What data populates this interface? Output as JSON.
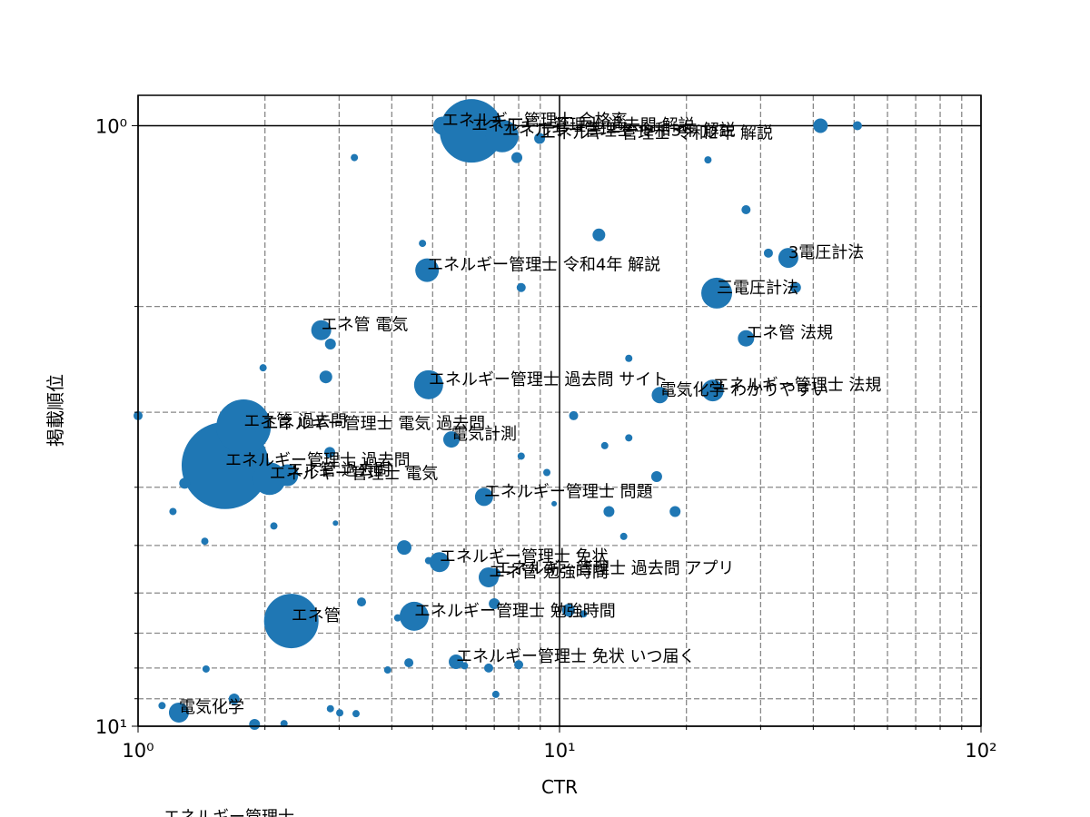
{
  "chart_data": {
    "type": "bubble",
    "x_label": "CTR",
    "y_label": "掲載順位",
    "x_log": true,
    "y_log": true,
    "y_inverted": true,
    "xlim": [
      1,
      100
    ],
    "ylim": [
      0.89,
      10
    ],
    "xticks": [
      {
        "value": 1,
        "label": "10⁰"
      },
      {
        "value": 10,
        "label": "10¹"
      },
      {
        "value": 100,
        "label": "10²"
      }
    ],
    "yticks": [
      {
        "value": 1,
        "label": "10⁰"
      },
      {
        "value": 10,
        "label": "10¹"
      }
    ],
    "xminorticks": [
      2,
      3,
      4,
      5,
      6,
      7,
      8,
      9,
      20,
      30,
      40,
      50,
      60,
      70,
      80,
      90
    ],
    "yminorticks": [
      2,
      3,
      4,
      5,
      6,
      7,
      8,
      9
    ],
    "grid": true,
    "color": "#1f77b4",
    "x": [
      1.61,
      1.78,
      1.97,
      2.05,
      2.26,
      6.18,
      7.31,
      5.27,
      8.97,
      41.6,
      50.9,
      7.92,
      3.26,
      22.5,
      27.7,
      12.4,
      4.73,
      31.3,
      34.9,
      4.85,
      8.11,
      23.6,
      36.3,
      2.72,
      2.86,
      27.7,
      14.6,
      1.98,
      2.79,
      4.89,
      17.3,
      23.1,
      1.0,
      10.8,
      5.54,
      12.8,
      14.6,
      2.85,
      8.11,
      9.33,
      17.0,
      1.29,
      6.62,
      9.71,
      1.21,
      13.1,
      18.8,
      2.1,
      2.94,
      1.44,
      14.2,
      4.28,
      5.19,
      4.89,
      6.79,
      7.03,
      7.0,
      3.39,
      2.31,
      4.52,
      4.13,
      10.5,
      11.4,
      5.68,
      5.95,
      4.39,
      3.91,
      6.79,
      8.0,
      1.45,
      7.06,
      1.69,
      1.25,
      1.14,
      2.86,
      3.01,
      3.29,
      1.89,
      2.22
    ],
    "values": [
      3.68,
      3.17,
      3.2,
      3.87,
      3.82,
      1.02,
      1.04,
      1.0,
      1.05,
      1.0,
      1.0,
      1.13,
      1.13,
      1.14,
      1.38,
      1.52,
      1.57,
      1.63,
      1.66,
      1.74,
      1.86,
      1.9,
      1.86,
      2.19,
      2.31,
      2.26,
      2.44,
      2.53,
      2.62,
      2.7,
      2.81,
      2.76,
      3.04,
      3.04,
      3.33,
      3.41,
      3.31,
      3.5,
      3.55,
      3.78,
      3.84,
      3.94,
      4.15,
      4.26,
      4.39,
      4.39,
      4.39,
      4.64,
      4.59,
      4.92,
      4.83,
      5.04,
      5.33,
      5.3,
      5.65,
      5.57,
      6.25,
      6.21,
      6.68,
      6.56,
      6.6,
      6.41,
      6.5,
      7.81,
      7.93,
      7.84,
      8.06,
      8.0,
      7.9,
      8.03,
      8.85,
      9.01,
      9.49,
      9.24,
      9.35,
      9.5,
      9.53,
      9.93,
      9.9
    ],
    "sizes": [
      2304,
      900,
      64,
      324,
      144,
      1225,
      324,
      100,
      36,
      64,
      25,
      36,
      16,
      16,
      25,
      49,
      16,
      25,
      121,
      169,
      25,
      289,
      36,
      121,
      36,
      81,
      16,
      16,
      49,
      256,
      81,
      144,
      25,
      25,
      81,
      16,
      16,
      36,
      16,
      16,
      36,
      36,
      100,
      9,
      16,
      36,
      36,
      16,
      9,
      16,
      16,
      64,
      121,
      16,
      121,
      36,
      36,
      25,
      900,
      256,
      16,
      49,
      16,
      64,
      16,
      25,
      16,
      25,
      25,
      16,
      16,
      36,
      121,
      16,
      16,
      16,
      16,
      36,
      16
    ],
    "labels": [
      "エネルギー管理士 過去問",
      "エネ管 過去問",
      "エネルギー管理士 電気 過去問",
      "エネルギー管理士 電気",
      "エネ管 過去問",
      "エネルギー管理士 過去問 解説",
      "エネルギー管理士 令和3年 解説",
      "エネルギー管理士 合格率",
      "エネルギー管理士 令和2年 解説",
      null,
      null,
      null,
      null,
      null,
      null,
      null,
      null,
      null,
      "3電圧計法",
      "エネルギー管理士 令和4年 解説",
      null,
      "三電圧計法",
      null,
      "エネ管 電気",
      null,
      "エネ管 法規",
      null,
      null,
      null,
      "エネルギー管理士 過去問 サイト",
      "電気化学 わかりやすい",
      "エネルギー管理士 法規",
      null,
      null,
      "電気計測",
      null,
      null,
      null,
      null,
      null,
      null,
      null,
      "エネルギー管理士 問題",
      null,
      null,
      null,
      null,
      null,
      null,
      null,
      null,
      null,
      "エネルギー管理士 免状",
      null,
      "エネ管 勉強時間",
      "エネルギー管理士 過去問 アプリ",
      null,
      null,
      "エネ管",
      "エネルギー管理士 勉強時間",
      null,
      null,
      null,
      "エネルギー管理士 免状 いつ届く",
      null,
      null,
      null,
      null,
      null,
      null,
      null,
      null,
      "電気化学",
      null,
      null,
      null,
      null,
      null,
      null
    ],
    "footer_annotation": "エネルギー管理士"
  }
}
